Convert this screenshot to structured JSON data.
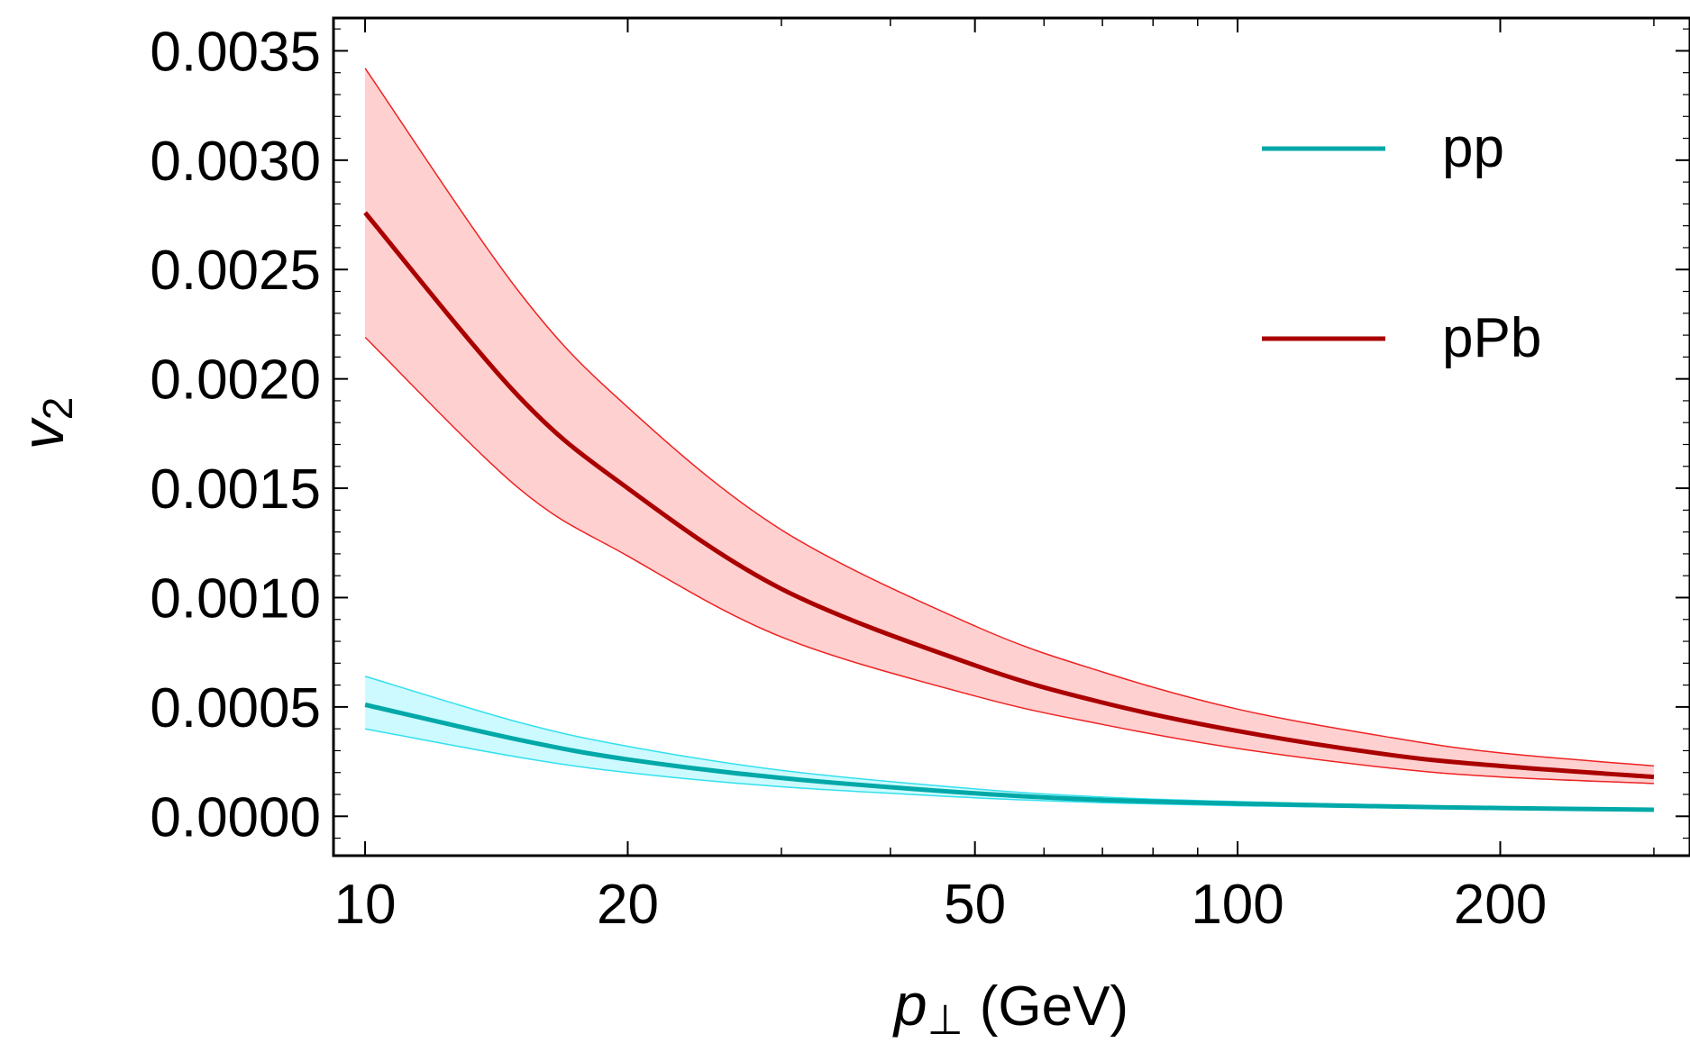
{
  "chart_data": {
    "type": "line",
    "title": "",
    "xlabel": "p",
    "xlabel_subscript": "⊥",
    "xlabel_unit": "(GeV)",
    "ylabel": "v",
    "ylabel_subscript": "2",
    "x_scale": "log",
    "xlim": [
      9.2,
      330
    ],
    "ylim": [
      -0.00018,
      0.00365
    ],
    "x_ticks": [
      10,
      20,
      50,
      100,
      200
    ],
    "x_tick_labels": [
      "10",
      "20",
      "50",
      "100",
      "200"
    ],
    "x_minor_ticks": [
      30,
      40,
      60,
      70,
      80,
      90,
      300
    ],
    "y_ticks": [
      0.0,
      0.0005,
      0.001,
      0.0015,
      0.002,
      0.0025,
      0.003,
      0.0035
    ],
    "y_tick_labels": [
      "0.0000",
      "0.0005",
      "0.0010",
      "0.0015",
      "0.0020",
      "0.0025",
      "0.0030",
      "0.0035"
    ],
    "legend_position": "top-right",
    "series": [
      {
        "name": "pp",
        "color": "#00a8a8",
        "band_fill": "#ccfaff",
        "band_edge": "#33e0ee",
        "x": [
          10,
          15,
          20,
          30,
          50,
          70,
          100,
          150,
          200,
          300
        ],
        "y": [
          0.00051,
          0.00035,
          0.00026,
          0.000175,
          0.000105,
          7.5e-05,
          5.8e-05,
          4.5e-05,
          3.8e-05,
          3e-05
        ],
        "lower": [
          0.0004,
          0.00027,
          0.0002,
          0.000135,
          8.5e-05,
          6.2e-05,
          4.8e-05,
          4e-05,
          3.5e-05,
          2.8e-05
        ],
        "upper": [
          0.00064,
          0.00043,
          0.00032,
          0.00021,
          0.000125,
          8.8e-05,
          6.7e-05,
          5.1e-05,
          4.2e-05,
          3.2e-05
        ]
      },
      {
        "name": "pPb",
        "color": "#aa0000",
        "band_fill": "#ffd0d0",
        "band_edge": "#ee2222",
        "x": [
          10,
          15,
          20,
          30,
          50,
          70,
          100,
          150,
          200,
          300
        ],
        "y": [
          0.00276,
          0.00192,
          0.0015,
          0.00104,
          0.00069,
          0.00052,
          0.00039,
          0.00028,
          0.00023,
          0.00018
        ],
        "lower": [
          0.00219,
          0.0015,
          0.00119,
          0.00082,
          0.00055,
          0.00042,
          0.00031,
          0.00022,
          0.00018,
          0.00015
        ],
        "upper": [
          0.00342,
          0.0024,
          0.00187,
          0.00131,
          0.00087,
          0.00066,
          0.00049,
          0.00036,
          0.00029,
          0.00023
        ]
      }
    ]
  }
}
